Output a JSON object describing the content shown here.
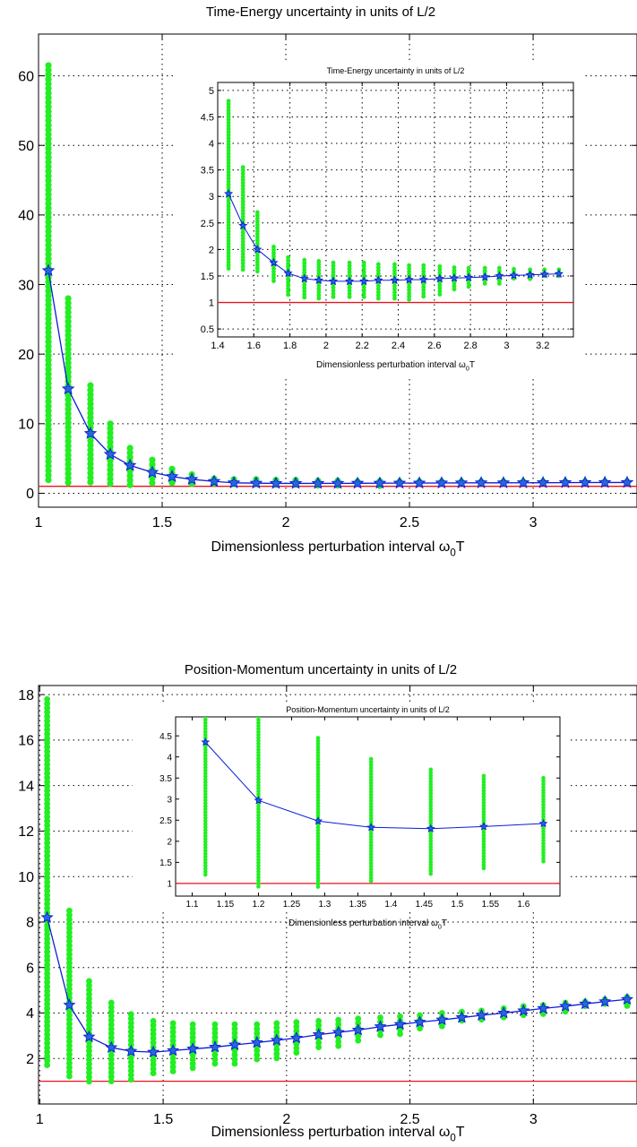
{
  "colors": {
    "band": "#22ee22",
    "mean": "#0a1ed8",
    "bound": "#e8141e",
    "grid": "#000000"
  },
  "chart_data": [
    {
      "id": "te-main",
      "type": "scatter",
      "title": "Time-Energy uncertainty in units of L/2",
      "xlabel": "Dimensionless perturbation interval ω",
      "xlabel_sub": "0",
      "xlabel_tail": "T",
      "xlim": [
        1,
        3.42
      ],
      "ylim": [
        -2,
        66
      ],
      "xticks": [
        1,
        1.5,
        2,
        2.5,
        3
      ],
      "yticks": [
        0,
        10,
        20,
        30,
        40,
        50,
        60
      ],
      "xticklabels": [
        "1",
        "1.5",
        "2",
        "2.5",
        "3"
      ],
      "yticklabels": [
        "0",
        "10",
        "20",
        "30",
        "40",
        "50",
        "60"
      ],
      "grid": true,
      "bound": 1.0,
      "series": [
        {
          "x": [
            1.04,
            1.12,
            1.21,
            1.29,
            1.37,
            1.46,
            1.54,
            1.62,
            1.71,
            1.79,
            1.88,
            1.96,
            2.04,
            2.13,
            2.21,
            2.29,
            2.38,
            2.46,
            2.54,
            2.63,
            2.71,
            2.79,
            2.88,
            2.96,
            3.04,
            3.13,
            3.21,
            3.29,
            3.38
          ],
          "mean": [
            32,
            15,
            8.6,
            5.6,
            4.0,
            3.0,
            2.4,
            2.0,
            1.7,
            1.5,
            1.45,
            1.42,
            1.42,
            1.42,
            1.43,
            1.44,
            1.45,
            1.46,
            1.47,
            1.48,
            1.49,
            1.5,
            1.5,
            1.51,
            1.52,
            1.53,
            1.54,
            1.55,
            1.55
          ],
          "lo": [
            1.5,
            1.2,
            1.1,
            1.1,
            1.05,
            1.05,
            1.05,
            1.05,
            1.05,
            1.05,
            1.05,
            1.05,
            1.05,
            1.05,
            1.05,
            1.05,
            1.05,
            1.05,
            1.05,
            1.05,
            1.05,
            1.05,
            1.05,
            1.05,
            1.05,
            1.05,
            1.05,
            1.05,
            1.05
          ],
          "hi": [
            61.5,
            28,
            15.5,
            10,
            6.5,
            4.8,
            3.5,
            2.7,
            2.1,
            2.0,
            2.0,
            1.9,
            1.9,
            1.8,
            1.8,
            1.7,
            1.75,
            1.7,
            1.7,
            1.7,
            1.7,
            1.7,
            1.7,
            1.7,
            1.7,
            1.7,
            1.7,
            1.7,
            1.7
          ]
        }
      ]
    },
    {
      "id": "te-inset",
      "type": "scatter",
      "title": "Time-Energy uncertainty in units of L/2",
      "xlabel": "Dimensionless perturbation interval ω",
      "xlabel_sub": "0",
      "xlabel_tail": "T",
      "xlim": [
        1.4,
        3.37
      ],
      "ylim": [
        0.35,
        5.15
      ],
      "xticks": [
        1.4,
        1.6,
        1.8,
        2,
        2.2,
        2.4,
        2.6,
        2.8,
        3,
        3.2
      ],
      "xticklabels": [
        "1.4",
        "1.6",
        "1.8",
        "2",
        "2.2",
        "2.4",
        "2.6",
        "2.8",
        "3",
        "3.2"
      ],
      "yticks": [
        0.5,
        1,
        1.5,
        2,
        2.5,
        3,
        3.5,
        4,
        4.5,
        5
      ],
      "yticklabels": [
        "0.5",
        "1",
        "1.5",
        "2",
        "2.5",
        "3",
        "3.5",
        "4",
        "4.5",
        "5"
      ],
      "grid": true,
      "bound": 1.0,
      "series": [
        {
          "x": [
            1.46,
            1.54,
            1.62,
            1.71,
            1.79,
            1.88,
            1.96,
            2.04,
            2.13,
            2.21,
            2.29,
            2.38,
            2.46,
            2.54,
            2.63,
            2.71,
            2.79,
            2.88,
            2.96,
            3.04,
            3.13,
            3.21,
            3.29
          ],
          "mean": [
            3.05,
            2.45,
            2.0,
            1.75,
            1.55,
            1.45,
            1.42,
            1.4,
            1.4,
            1.4,
            1.42,
            1.42,
            1.43,
            1.43,
            1.45,
            1.46,
            1.47,
            1.48,
            1.5,
            1.51,
            1.52,
            1.53,
            1.54
          ],
          "lo": [
            1.6,
            1.6,
            1.55,
            1.35,
            1.1,
            1.05,
            1.05,
            1.05,
            1.05,
            1.05,
            1.05,
            1.05,
            1.05,
            1.1,
            1.15,
            1.2,
            1.25,
            1.3,
            1.35,
            1.4,
            1.4,
            1.45,
            1.45
          ],
          "hi": [
            4.8,
            3.55,
            2.7,
            2.05,
            1.85,
            1.8,
            1.78,
            1.75,
            1.75,
            1.75,
            1.72,
            1.72,
            1.7,
            1.7,
            1.68,
            1.66,
            1.65,
            1.65,
            1.65,
            1.63,
            1.62,
            1.62,
            1.62
          ]
        }
      ]
    },
    {
      "id": "pm-main",
      "type": "scatter",
      "title": "Position-Momentum uncertainty in units of L/2",
      "xlabel": "Dimensionless perturbation interval ω",
      "xlabel_sub": "0",
      "xlabel_tail": "T",
      "xlim": [
        0.995,
        3.42
      ],
      "ylim": [
        0,
        18.4
      ],
      "xticks": [
        1,
        1.5,
        2,
        2.5,
        3
      ],
      "xticklabels": [
        "1",
        "1.5",
        "2",
        "2.5",
        "3"
      ],
      "yticks": [
        2,
        4,
        6,
        8,
        10,
        12,
        14,
        16,
        18
      ],
      "yticklabels": [
        "2",
        "4",
        "6",
        "8",
        "10",
        "12",
        "14",
        "16",
        "18"
      ],
      "grid": true,
      "bound": 1.0,
      "series": [
        {
          "x": [
            1.03,
            1.12,
            1.2,
            1.29,
            1.37,
            1.46,
            1.54,
            1.62,
            1.71,
            1.79,
            1.88,
            1.96,
            2.04,
            2.13,
            2.21,
            2.29,
            2.38,
            2.46,
            2.54,
            2.63,
            2.71,
            2.79,
            2.88,
            2.96,
            3.04,
            3.13,
            3.21,
            3.29,
            3.38
          ],
          "mean": [
            8.2,
            4.35,
            2.95,
            2.48,
            2.32,
            2.28,
            2.35,
            2.42,
            2.5,
            2.6,
            2.7,
            2.8,
            2.9,
            3.05,
            3.15,
            3.25,
            3.4,
            3.5,
            3.6,
            3.7,
            3.8,
            3.9,
            4.0,
            4.1,
            4.2,
            4.3,
            4.4,
            4.5,
            4.6
          ],
          "lo": [
            1.7,
            1.1,
            0.9,
            0.9,
            1.0,
            1.2,
            1.3,
            1.45,
            1.6,
            1.75,
            1.9,
            2.0,
            2.2,
            2.4,
            2.55,
            2.7,
            2.9,
            3.05,
            3.2,
            3.35,
            3.5,
            3.6,
            3.75,
            3.85,
            3.95,
            4.05,
            4.15,
            4.25,
            4.3
          ],
          "hi": [
            17.8,
            8.5,
            5.4,
            4.45,
            3.95,
            3.65,
            3.55,
            3.5,
            3.5,
            3.5,
            3.5,
            3.55,
            3.6,
            3.65,
            3.7,
            3.75,
            3.8,
            3.85,
            3.9,
            4.0,
            4.05,
            4.1,
            4.2,
            4.3,
            4.35,
            4.45,
            4.5,
            4.6,
            4.7
          ]
        }
      ]
    },
    {
      "id": "pm-inset",
      "type": "scatter",
      "title": "Position-Momentum uncertainty in units of L/2",
      "xlabel": "Dimensionless perturbation interval ω",
      "xlabel_sub": "0",
      "xlabel_tail": "T",
      "xlim": [
        1.075,
        1.655
      ],
      "ylim": [
        0.7,
        4.95
      ],
      "xticks": [
        1.1,
        1.15,
        1.2,
        1.25,
        1.3,
        1.35,
        1.4,
        1.45,
        1.5,
        1.55,
        1.6
      ],
      "xticklabels": [
        "1.1",
        "1.15",
        "1.2",
        "1.25",
        "1.3",
        "1.35",
        "1.4",
        "1.45",
        "1.5",
        "1.55",
        "1.6"
      ],
      "yticks": [
        1,
        1.5,
        2,
        2.5,
        3,
        3.5,
        4,
        4.5
      ],
      "yticklabels": [
        "1",
        "1.5",
        "2",
        "2.5",
        "3",
        "3.5",
        "4",
        "4.5"
      ],
      "grid": false,
      "bound": 1.0,
      "series": [
        {
          "x": [
            1.12,
            1.2,
            1.29,
            1.37,
            1.46,
            1.54,
            1.63
          ],
          "mean": [
            4.35,
            2.97,
            2.48,
            2.33,
            2.3,
            2.35,
            2.42
          ],
          "lo": [
            1.15,
            0.9,
            0.9,
            1.05,
            1.2,
            1.35,
            1.5
          ],
          "hi": [
            4.95,
            4.95,
            4.45,
            3.95,
            3.7,
            3.55,
            3.5
          ]
        }
      ]
    }
  ]
}
